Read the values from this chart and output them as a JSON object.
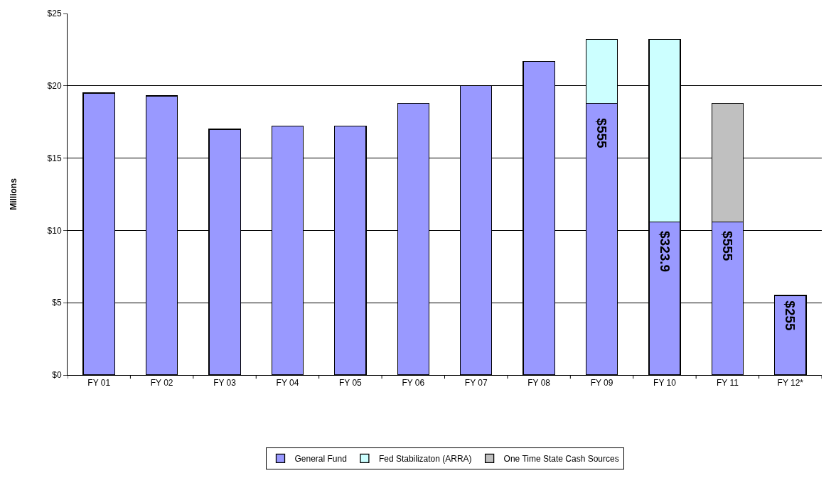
{
  "chart_data": {
    "type": "bar",
    "stacked": true,
    "ylabel": "Millions",
    "categories": [
      "FY 01",
      "FY 02",
      "FY 03",
      "FY 04",
      "FY 05",
      "FY 06",
      "FY 07",
      "FY 08",
      "FY 09",
      "FY 10",
      "FY 11",
      "FY 12*"
    ],
    "series": [
      {
        "name": "General Fund",
        "color": "#9999ff",
        "values": [
          19.5,
          19.3,
          17.0,
          17.2,
          17.2,
          18.8,
          20.0,
          21.7,
          18.8,
          10.6,
          10.6,
          5.5
        ]
      },
      {
        "name": "Fed Stabilizaton (ARRA)",
        "color": "#ccffff",
        "values": [
          null,
          null,
          null,
          null,
          null,
          null,
          null,
          null,
          4.4,
          12.6,
          null,
          null
        ]
      },
      {
        "name": "One Time State Cash Sources",
        "color": "#c0c0c0",
        "values": [
          null,
          null,
          null,
          null,
          null,
          null,
          null,
          null,
          null,
          null,
          8.2,
          null
        ]
      }
    ],
    "ylim": [
      0,
      25
    ],
    "yticks": [
      {
        "value": 0,
        "label": "$0"
      },
      {
        "value": 5,
        "label": "$5"
      },
      {
        "value": 10,
        "label": "$10"
      },
      {
        "value": 15,
        "label": "$15"
      },
      {
        "value": 20,
        "label": "$20"
      },
      {
        "value": 25,
        "label": "$25"
      }
    ],
    "grid": "y",
    "legend": "bottom",
    "annotations": [
      "$555",
      "$323.9",
      "$555",
      "$255"
    ]
  }
}
